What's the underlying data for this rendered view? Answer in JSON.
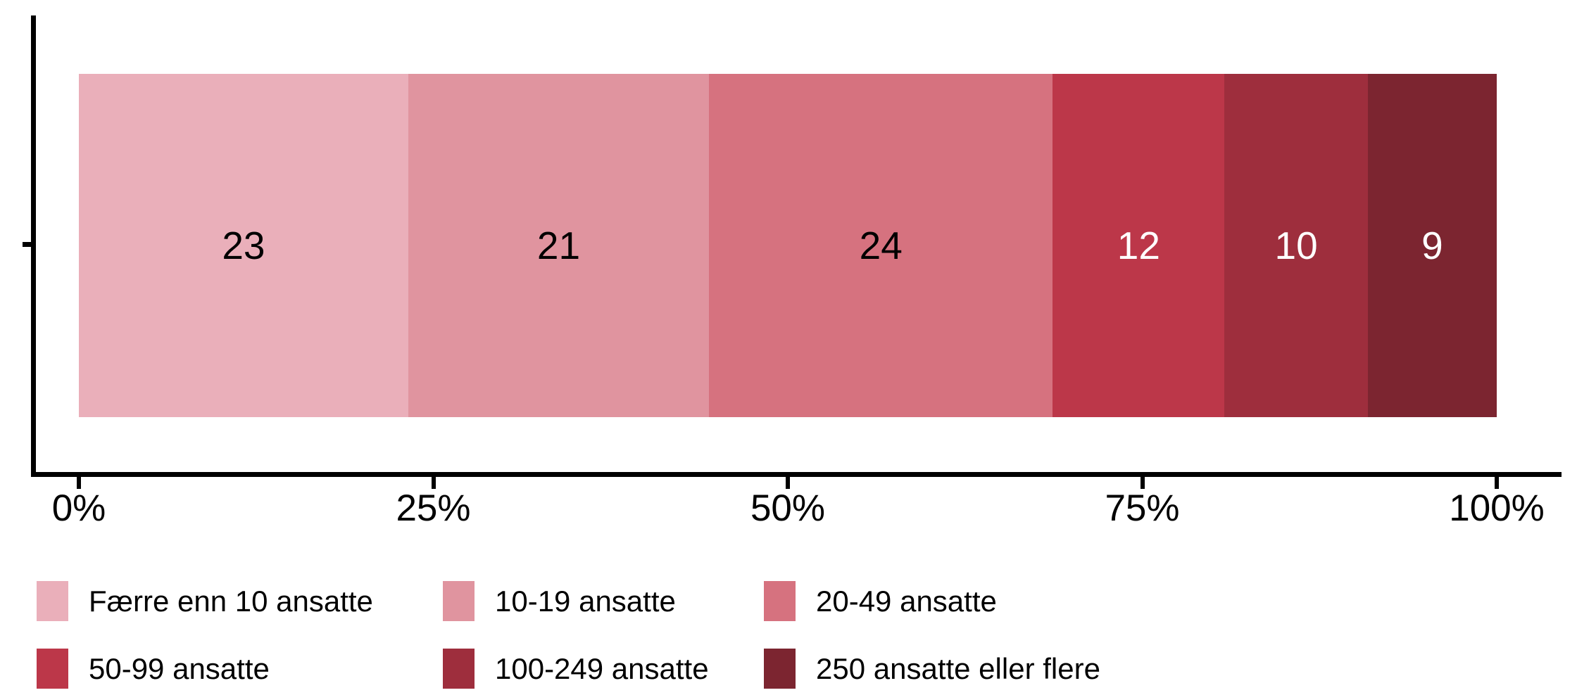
{
  "chart_data": {
    "type": "bar",
    "orientation": "horizontal",
    "stacked": true,
    "title": "",
    "axis_color": "#000000",
    "x_axis": {
      "range": [
        0,
        100
      ],
      "ticks": [
        {
          "label": "0%",
          "pct": 0
        },
        {
          "label": "25%",
          "pct": 25
        },
        {
          "label": "50%",
          "pct": 50
        },
        {
          "label": "75%",
          "pct": 75
        },
        {
          "label": "100%",
          "pct": 100
        }
      ]
    },
    "segments": [
      {
        "label": "Færre enn 10 ansatte",
        "value": 23,
        "color": "#eaafba",
        "text_color": "#000000"
      },
      {
        "label": "10-19 ansatte",
        "value": 21,
        "color": "#e0949f",
        "text_color": "#000000"
      },
      {
        "label": "20-49 ansatte",
        "value": 24,
        "color": "#d6727f",
        "text_color": "#000000"
      },
      {
        "label": "50-99 ansatte",
        "value": 12,
        "color": "#bc3749",
        "text_color": "#ffffff"
      },
      {
        "label": "100-249 ansatte",
        "value": 10,
        "color": "#9e2e3d",
        "text_color": "#ffffff"
      },
      {
        "label": "250 ansatte eller flere",
        "value": 9,
        "color": "#7c2530",
        "text_color": "#ffffff"
      }
    ],
    "legend": {
      "position": "bottom",
      "rows": 2,
      "columns": 3
    }
  }
}
